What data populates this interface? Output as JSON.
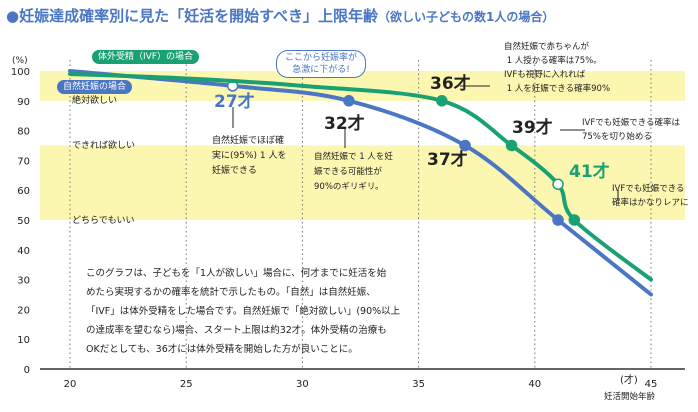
{
  "chart_data": {
    "type": "line",
    "title": "●妊娠達成確率別に見た「妊活を開始すべき」上限年齢",
    "subtitle": "（欲しい子どもの数1人の場合）",
    "ylabel": "(%)",
    "xlabel": "妊活開始年齢",
    "x_unit": "(才)",
    "xlim": [
      20,
      45
    ],
    "ylim": [
      0,
      100
    ],
    "x_ticks": [
      "20",
      "25",
      "30",
      "35",
      "40",
      "45"
    ],
    "y_ticks": [
      "0",
      "10",
      "20",
      "30",
      "40",
      "50",
      "60",
      "70",
      "80",
      "90",
      "100"
    ],
    "grid": "vertical dotted",
    "colors": {
      "natural": "#4a76c4",
      "ivf": "#1aa173",
      "band": "#fbf6b0"
    },
    "bands": [
      {
        "from": 90,
        "to": 100,
        "label": "絶対欲しい"
      },
      {
        "from": 50,
        "to": 75,
        "label": "できれば欲しい"
      }
    ],
    "band_label_50": "どちらでもいい",
    "series": [
      {
        "name": "自然妊娠の場合",
        "x": [
          20,
          27,
          32,
          37,
          41,
          45
        ],
        "y": [
          100,
          95,
          90,
          75,
          50,
          25
        ],
        "markers": [
          27,
          32,
          37,
          41
        ]
      },
      {
        "name": "体外受精（IVF）の場合",
        "x": [
          20,
          25,
          30,
          36,
          39,
          41,
          41.7,
          45
        ],
        "y": [
          99,
          97.5,
          95,
          90,
          75,
          62,
          50,
          30
        ],
        "markers": [
          36,
          39,
          41,
          41.7
        ]
      }
    ],
    "annotations": {
      "bubble": "ここから妊娠率が\n急激に下がる!",
      "a27": "27才",
      "a27_note": "自然妊娠でほぼ確\n実に(95%) 1 人を\n妊娠できる",
      "a32": "32才",
      "a32_note": "自然妊娠で 1 人を妊\n娠できる可能性が\n90%のギリギリ。",
      "a36": "36才",
      "a36_note": "自然妊娠で赤ちゃんが\n 1 人授かる確率は75%。\nIVFも視野に入れれば\n 1 人を妊娠できる確率90%",
      "a37": "37才",
      "a39": "39才",
      "a39_note": "IVFでも妊娠できる確率は\n75%を切り始める",
      "a41": "41才",
      "a41_note": "IVFでも妊娠できる\n確率はかなりレアに",
      "explanation": "このグラフは、子どもを「1人が欲しい」場合に、何才までに妊活を始\nめたら実現するかの確率を統計で示したもの。「自然」は自然妊娠、\n「IVF」は体外受精をした場合です。自然妊娠で「絶対欲しい」(90%以上\nの達成率を望むなら)場合、スタート上限は約32才。体外受精の治療も\nOKだとしても、36才には体外受精を開始した方が良いことに。"
    }
  }
}
